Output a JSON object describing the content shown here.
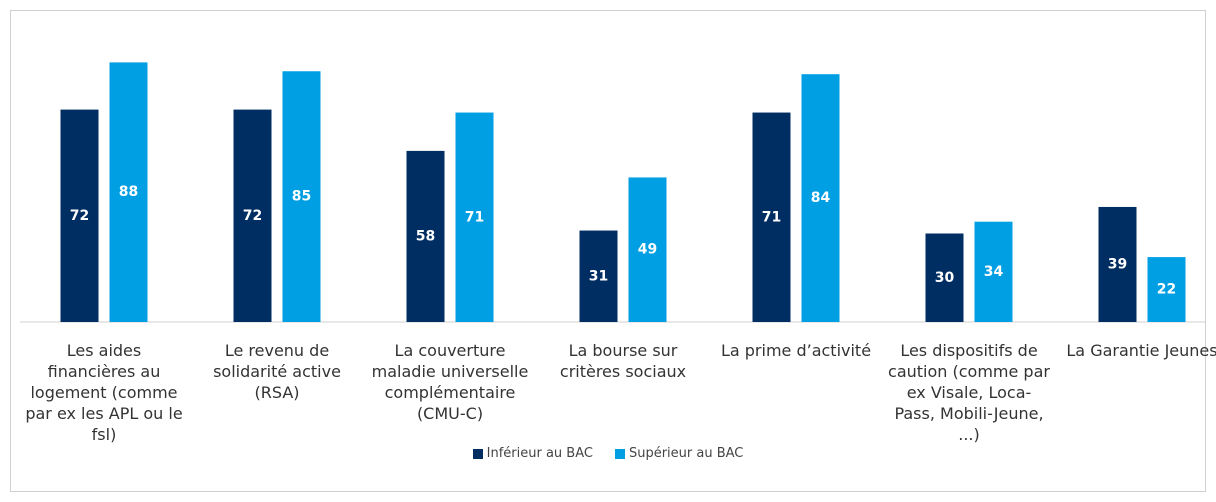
{
  "chart_data": {
    "type": "bar",
    "categories": [
      "Les aides financières au logement (comme par ex les APL ou le fsl)",
      "Le revenu de solidarité active (RSA)",
      "La couverture maladie universelle complémentaire (CMU-C)",
      "La bourse sur critères sociaux",
      "La prime d’activité",
      "Les dispositifs de caution (comme par ex Visale, Loca-Pass, Mobili-Jeune, ...)",
      "La Garantie Jeunes"
    ],
    "series": [
      {
        "name": "Inférieur au BAC",
        "color": "#002d62",
        "values": [
          72,
          72,
          58,
          31,
          71,
          30,
          39
        ]
      },
      {
        "name": "Supérieur au BAC",
        "color": "#009fe3",
        "values": [
          88,
          85,
          71,
          49,
          84,
          34,
          22
        ]
      }
    ],
    "legend": "bottom"
  }
}
